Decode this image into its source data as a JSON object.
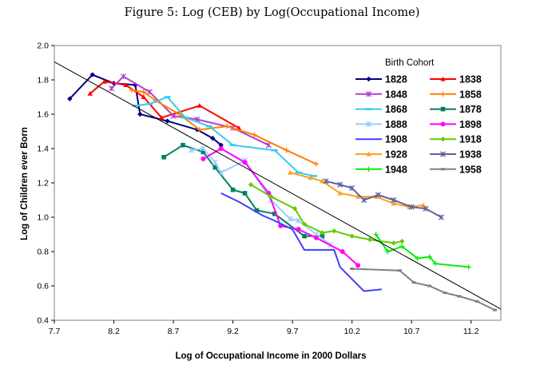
{
  "figure_title": "Figure 5: Log (CEB) by Log(Occupational Income)",
  "chart_data": {
    "type": "line",
    "title": "Figure 5: Log (CEB) by Log(Occupational Income)",
    "xlabel": "Log of Occupational Income in 2000 Dollars",
    "ylabel": "Log of Children ever Born",
    "xlim": [
      7.7,
      11.45
    ],
    "ylim": [
      0.4,
      2.0
    ],
    "xticks": [
      "7.7",
      "8.2",
      "8.7",
      "9.2",
      "9.7",
      "10.2",
      "10.7",
      "11.2"
    ],
    "yticks": [
      "0.4",
      "0.6",
      "0.8",
      "1.0",
      "1.2",
      "1.4",
      "1.6",
      "1.8",
      "2.0"
    ],
    "legend_title": "Birth Cohort",
    "legend_position": "top-right",
    "grid": false,
    "trend_line": {
      "x": [
        7.7,
        11.45
      ],
      "y": [
        1.905,
        0.465
      ]
    },
    "series": [
      {
        "name": "1828",
        "color": "#000080",
        "marker": "diamond",
        "x": [
          7.83,
          8.02,
          8.2,
          8.38,
          8.42,
          8.65,
          8.9,
          9.03,
          9.1
        ],
        "y": [
          1.69,
          1.83,
          1.78,
          1.77,
          1.6,
          1.56,
          1.51,
          1.46,
          1.42
        ]
      },
      {
        "name": "1838",
        "color": "#ff0000",
        "marker": "triangle",
        "x": [
          8.0,
          8.12,
          8.3,
          8.45,
          8.6,
          8.92,
          9.25
        ],
        "y": [
          1.72,
          1.79,
          1.77,
          1.7,
          1.58,
          1.65,
          1.52
        ]
      },
      {
        "name": "1848",
        "color": "#b040d0",
        "marker": "x",
        "x": [
          8.18,
          8.28,
          8.5,
          8.7,
          8.9,
          9.2,
          9.5
        ],
        "y": [
          1.75,
          1.82,
          1.73,
          1.59,
          1.57,
          1.52,
          1.42
        ]
      },
      {
        "name": "1858",
        "color": "#ff8000",
        "marker": "plus",
        "x": [
          8.35,
          8.45,
          8.55,
          8.75,
          8.92,
          9.15,
          9.38,
          9.65,
          9.9
        ],
        "y": [
          1.74,
          1.73,
          1.68,
          1.6,
          1.51,
          1.53,
          1.48,
          1.39,
          1.31
        ]
      },
      {
        "name": "1868",
        "color": "#33ccee",
        "marker": "dash",
        "x": [
          8.38,
          8.5,
          8.65,
          8.8,
          9.0,
          9.2,
          9.55,
          9.75,
          9.88
        ],
        "y": [
          1.65,
          1.66,
          1.7,
          1.58,
          1.53,
          1.42,
          1.39,
          1.26,
          1.24
        ]
      },
      {
        "name": "1878",
        "color": "#008060",
        "marker": "square",
        "x": [
          8.62,
          8.78,
          8.95,
          9.05,
          9.2,
          9.3,
          9.4,
          9.55,
          9.8,
          9.95
        ],
        "y": [
          1.35,
          1.42,
          1.38,
          1.29,
          1.16,
          1.14,
          1.04,
          1.02,
          0.89,
          0.89
        ]
      },
      {
        "name": "1888",
        "color": "#99ccff",
        "marker": "x",
        "x": [
          8.85,
          8.95,
          9.05,
          9.1,
          9.3,
          9.52,
          9.68,
          9.75,
          9.9,
          10.02
        ],
        "y": [
          1.39,
          1.4,
          1.32,
          1.26,
          1.33,
          1.1,
          0.99,
          0.98,
          0.9,
          0.84
        ]
      },
      {
        "name": "1898",
        "color": "#ff00ff",
        "marker": "circle",
        "x": [
          8.95,
          9.1,
          9.3,
          9.5,
          9.6,
          9.75,
          9.9,
          10.12,
          10.25
        ],
        "y": [
          1.34,
          1.4,
          1.32,
          1.14,
          0.95,
          0.93,
          0.88,
          0.8,
          0.72
        ]
      },
      {
        "name": "1908",
        "color": "#4040ff",
        "marker": "none",
        "x": [
          9.1,
          9.25,
          9.45,
          9.55,
          9.7,
          9.8,
          10.05,
          10.1,
          10.3,
          10.45
        ],
        "y": [
          1.14,
          1.09,
          1.01,
          0.98,
          0.93,
          0.81,
          0.81,
          0.71,
          0.57,
          0.58
        ]
      },
      {
        "name": "1918",
        "color": "#66cc00",
        "marker": "diamond",
        "x": [
          9.35,
          9.52,
          9.72,
          9.8,
          9.95,
          10.05,
          10.2,
          10.35,
          10.55,
          10.62
        ],
        "y": [
          1.19,
          1.12,
          1.05,
          0.96,
          0.91,
          0.92,
          0.89,
          0.87,
          0.85,
          0.86
        ]
      },
      {
        "name": "1928",
        "color": "#ffa020",
        "marker": "triangle",
        "x": [
          9.68,
          9.85,
          9.95,
          10.1,
          10.25,
          10.4,
          10.55,
          10.68,
          10.8
        ],
        "y": [
          1.26,
          1.23,
          1.21,
          1.14,
          1.12,
          1.12,
          1.08,
          1.06,
          1.07
        ]
      },
      {
        "name": "1938",
        "color": "#6060a0",
        "marker": "x",
        "x": [
          9.98,
          10.1,
          10.2,
          10.3,
          10.42,
          10.55,
          10.7,
          10.82,
          10.95
        ],
        "y": [
          1.21,
          1.19,
          1.17,
          1.1,
          1.13,
          1.1,
          1.06,
          1.05,
          1.0
        ]
      },
      {
        "name": "1948",
        "color": "#00ee00",
        "marker": "plus",
        "x": [
          10.4,
          10.5,
          10.62,
          10.75,
          10.85,
          10.9,
          11.18
        ],
        "y": [
          0.9,
          0.8,
          0.83,
          0.76,
          0.77,
          0.73,
          0.71
        ]
      },
      {
        "name": "1958",
        "color": "#808080",
        "marker": "bar",
        "x": [
          10.2,
          10.6,
          10.72,
          10.85,
          10.98,
          11.1,
          11.25,
          11.4
        ],
        "y": [
          0.7,
          0.69,
          0.62,
          0.6,
          0.56,
          0.54,
          0.51,
          0.46
        ]
      }
    ]
  }
}
